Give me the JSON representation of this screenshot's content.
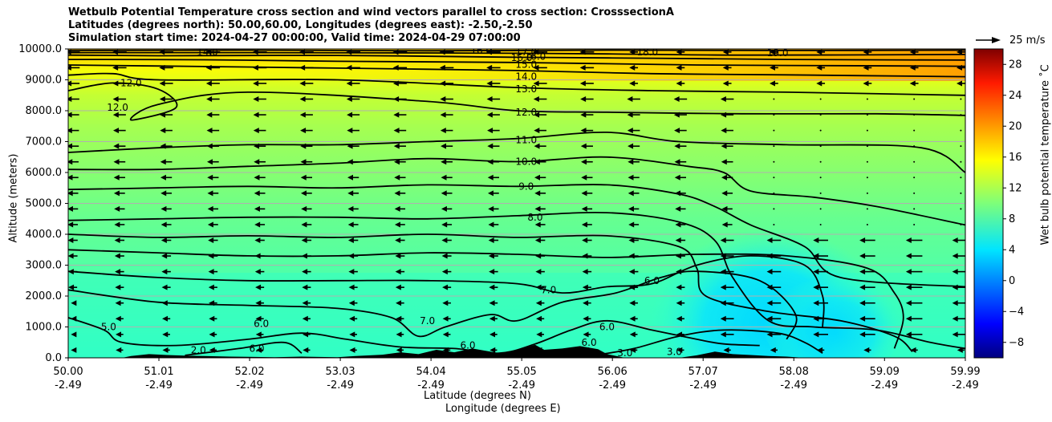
{
  "chart_data": {
    "type": "cross_section_contour",
    "title_lines": [
      "Wetbulb Potential Temperature cross section and wind vectors parallel to cross section: CrosssectionA",
      "Latitudes (degrees north): 50.00,60.00, Longitudes (degrees east): -2.50,-2.50",
      "Simulation start time: 2024-04-27 00:00:00, Valid time: 2024-04-29 07:00:00"
    ],
    "ylabel": "Altitude (meters)",
    "xlabel": "Latitude (degrees N)",
    "xlabel2": "Longitude (degrees E)",
    "ylim": [
      0,
      10000
    ],
    "yticks": [
      "0.0",
      "1000.0",
      "2000.0",
      "3000.0",
      "4000.0",
      "5000.0",
      "6000.0",
      "7000.0",
      "8000.0",
      "9000.0",
      "10000.0"
    ],
    "ytick_values": [
      0,
      1000,
      2000,
      3000,
      4000,
      5000,
      6000,
      7000,
      8000,
      9000,
      10000
    ],
    "xlim": [
      50.0,
      59.99
    ],
    "xtick_values": [
      50.0,
      51.01,
      52.02,
      53.03,
      54.04,
      55.05,
      56.06,
      57.07,
      58.08,
      59.09,
      59.99
    ],
    "xticks_lat": [
      "50.00",
      "51.01",
      "52.02",
      "53.03",
      "54.04",
      "55.05",
      "56.06",
      "57.07",
      "58.08",
      "59.09",
      "59.99"
    ],
    "xticks_lon": [
      "-2.49",
      "-2.49",
      "-2.49",
      "-2.49",
      "-2.49",
      "-2.49",
      "-2.49",
      "-2.49",
      "-2.49",
      "-2.49",
      "-2.49"
    ],
    "grid": "horizontal",
    "colorbar": {
      "label": "Wet bulb potential temperature $^\\circ$C",
      "label_display": "Wet bulb potential temperature ˚C",
      "range": [
        -10,
        30
      ],
      "ticks": [
        "−8",
        "−4",
        "0",
        "4",
        "8",
        "12",
        "16",
        "20",
        "24",
        "28"
      ],
      "tick_values": [
        -8,
        -4,
        0,
        4,
        8,
        12,
        16,
        20,
        24,
        28
      ],
      "colormap": "jet"
    },
    "quiver_key": {
      "label": "25 m/s",
      "value": 25
    },
    "contour_levels": [
      3,
      6,
      7,
      8,
      9,
      10,
      11,
      12,
      13,
      14,
      15,
      16,
      17,
      18,
      19
    ],
    "contour_labels": [
      {
        "text": "19.0",
        "x": 57.9,
        "z": 9870
      },
      {
        "text": "18.0",
        "x": 56.45,
        "z": 9900
      },
      {
        "text": "17.0",
        "x": 55.1,
        "z": 9900
      },
      {
        "text": "16.0",
        "x": 55.2,
        "z": 9750
      },
      {
        "text": "16.0",
        "x": 55.05,
        "z": 9720
      },
      {
        "text": "15.0",
        "x": 55.1,
        "z": 9500
      },
      {
        "text": "14.0",
        "x": 55.1,
        "z": 9100
      },
      {
        "text": "13.0",
        "x": 55.1,
        "z": 8700
      },
      {
        "text": "12.0",
        "x": 55.1,
        "z": 7950
      },
      {
        "text": "11.0",
        "x": 55.1,
        "z": 7050
      },
      {
        "text": "10.0",
        "x": 55.1,
        "z": 6350
      },
      {
        "text": "9.0",
        "x": 55.1,
        "z": 5550
      },
      {
        "text": "8.0",
        "x": 55.2,
        "z": 4550
      },
      {
        "text": "7.0",
        "x": 55.35,
        "z": 2200
      },
      {
        "text": "6.0",
        "x": 56.5,
        "z": 2500
      },
      {
        "text": "7.0",
        "x": 54.0,
        "z": 1200
      },
      {
        "text": "6.0",
        "x": 56.0,
        "z": 1000
      },
      {
        "text": "6.0",
        "x": 55.8,
        "z": 500
      },
      {
        "text": "3.0",
        "x": 56.2,
        "z": 150
      },
      {
        "text": "3.0",
        "x": 56.75,
        "z": 200
      },
      {
        "text": "6.0",
        "x": 54.45,
        "z": 400
      },
      {
        "text": "6.0",
        "x": 52.15,
        "z": 1100
      },
      {
        "text": "6.0",
        "x": 52.1,
        "z": 300
      },
      {
        "text": "5.0",
        "x": 50.45,
        "z": 1000
      },
      {
        "text": "2.0",
        "x": 51.45,
        "z": 250
      },
      {
        "text": "12.0",
        "x": 50.55,
        "z": 8100
      },
      {
        "text": "12.0",
        "x": 50.7,
        "z": 8900
      },
      {
        "text": "14.0",
        "x": 51.55,
        "z": 9900
      },
      {
        "text": "16.0",
        "x": 54.6,
        "z": 9950
      }
    ],
    "wind_note": "wind vectors mostly southward (pointing left) with magnitude increasing in upper levels and lower-right region"
  }
}
